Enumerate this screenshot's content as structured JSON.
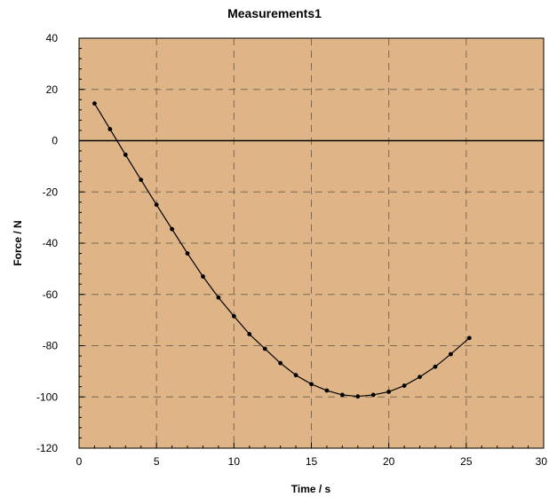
{
  "chart_data": {
    "type": "line",
    "title": "Measurements1",
    "xlabel": "Time / s",
    "ylabel": "Force / N",
    "xlim": [
      0,
      30
    ],
    "ylim": [
      -120,
      40
    ],
    "x_ticks": [
      0,
      5,
      10,
      15,
      20,
      25,
      30
    ],
    "y_ticks": [
      40,
      20,
      0,
      -20,
      -40,
      -60,
      -80,
      -100,
      -120
    ],
    "grid": true,
    "plot_background": "#DFB587",
    "line_color": "#000000",
    "zero_line": true,
    "series": [
      {
        "x": [
          1,
          2,
          3,
          4,
          5,
          6,
          7,
          8,
          9,
          10,
          11,
          12,
          13,
          14,
          15,
          16,
          17,
          18,
          19,
          20,
          21,
          22,
          23,
          24,
          25.2
        ],
        "y": [
          14.5,
          4.5,
          -5.5,
          -15.3,
          -25,
          -34.5,
          -44,
          -53,
          -61.2,
          -68.5,
          -75.5,
          -81.2,
          -86.8,
          -91.5,
          -95,
          -97.5,
          -99.2,
          -99.8,
          -99.2,
          -98,
          -95.6,
          -92.2,
          -88.2,
          -83.3,
          -77
        ]
      }
    ]
  }
}
